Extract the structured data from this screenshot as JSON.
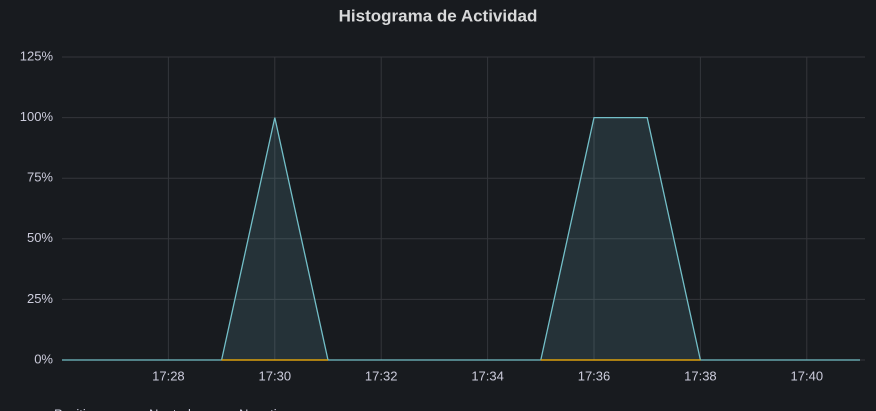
{
  "chart_data": {
    "type": "line",
    "title": "Histograma de Actividad",
    "x": [
      "17:26",
      "17:27",
      "17:28",
      "17:29",
      "17:30",
      "17:31",
      "17:32",
      "17:33",
      "17:34",
      "17:35",
      "17:36",
      "17:37",
      "17:38",
      "17:39",
      "17:40",
      "17:41"
    ],
    "series": [
      {
        "name": "Positivo",
        "color": "#73bfc8",
        "values": [
          0,
          0,
          0,
          0,
          100,
          0,
          0,
          0,
          0,
          0,
          100,
          100,
          0,
          0,
          0,
          0
        ]
      },
      {
        "name": "Neutral",
        "color": "#e0b400",
        "values": [
          null,
          null,
          null,
          0,
          0,
          0,
          null,
          null,
          null,
          0,
          0,
          0,
          0,
          null,
          null,
          null
        ]
      },
      {
        "name": "Negativo",
        "color": "#f2495c",
        "values": [
          null,
          null,
          null,
          0,
          0,
          0,
          null,
          null,
          null,
          0,
          0,
          0,
          0,
          null,
          null,
          null
        ]
      }
    ],
    "xlim": [
      "17:26",
      "17:41"
    ],
    "xticks": [
      "17:28",
      "17:30",
      "17:32",
      "17:34",
      "17:36",
      "17:38",
      "17:40"
    ],
    "ylim": [
      0,
      125
    ],
    "yticks": [
      {
        "value": 0,
        "label": "0%"
      },
      {
        "value": 25,
        "label": "25%"
      },
      {
        "value": 50,
        "label": "50%"
      },
      {
        "value": 75,
        "label": "75%"
      },
      {
        "value": 100,
        "label": "100%"
      },
      {
        "value": 125,
        "label": "125%"
      }
    ],
    "grid": true,
    "fill": true,
    "legend": "bottom"
  }
}
